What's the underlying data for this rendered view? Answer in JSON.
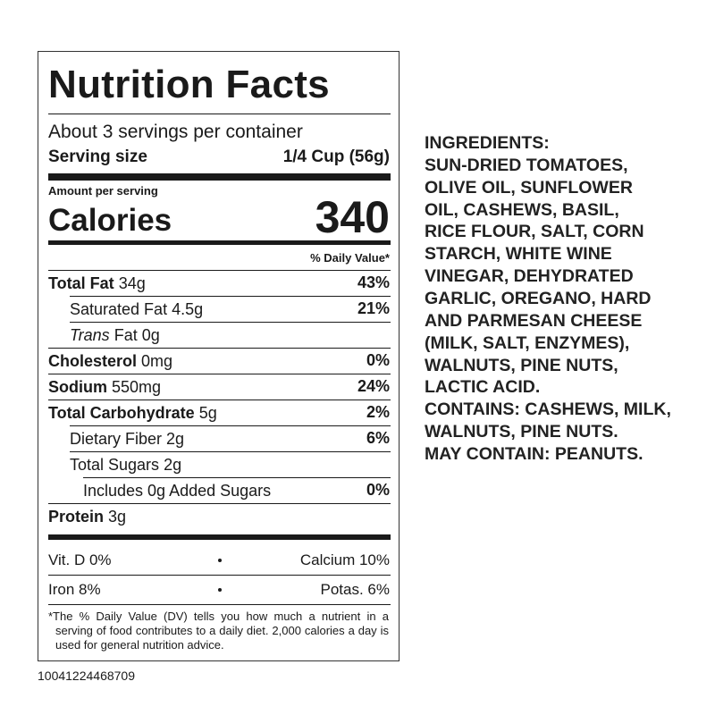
{
  "label": {
    "title": "Nutrition Facts",
    "servings": "About 3 servings per container",
    "serving_size_label": "Serving size",
    "serving_size_value": "1/4 Cup (56g)",
    "amount_per_serving": "Amount per serving",
    "calories_label": "Calories",
    "calories_value": "340",
    "daily_value_header": "% Daily Value*",
    "nutrients": [
      {
        "name": "Total Fat",
        "amount": "34g",
        "dv": "43%",
        "sub": [
          {
            "name": "Saturated Fat",
            "amount": "4.5g",
            "dv": "21%"
          },
          {
            "italic": "Trans",
            "name": "Fat",
            "amount": "0g"
          }
        ]
      },
      {
        "name": "Cholesterol",
        "amount": "0mg",
        "dv": "0%"
      },
      {
        "name": "Sodium",
        "amount": "550mg",
        "dv": "24%"
      },
      {
        "name": "Total Carbohydrate",
        "amount": "5g",
        "dv": "2%",
        "sub": [
          {
            "name": "Dietary Fiber",
            "amount": "2g",
            "dv": "6%"
          },
          {
            "name": "Total Sugars",
            "amount": "2g",
            "sub": [
              {
                "name": "Includes 0g Added Sugars",
                "dv": "0%"
              }
            ]
          }
        ]
      },
      {
        "name": "Protein",
        "amount": "3g"
      }
    ],
    "vitamins": [
      [
        "Vit. D 0%",
        "Calcium 10%"
      ],
      [
        "Iron 8%",
        "Potas. 6%"
      ]
    ],
    "footnote": "*The % Daily Value (DV) tells you how much a nutrient in a serving of food contributes to a daily diet. 2,000 calories a day is used for general nutrition advice."
  },
  "code": "10041224468709",
  "ingredients": [
    "INGREDIENTS:",
    "SUN-DRIED TOMATOES,",
    "OLIVE OIL, SUNFLOWER",
    "OIL, CASHEWS, BASIL,",
    "RICE FLOUR, SALT, CORN",
    "STARCH, WHITE WINE",
    "VINEGAR, DEHYDRATED",
    "GARLIC, OREGANO, HARD",
    "AND PARMESAN CHEESE",
    "(MILK, SALT, ENZYMES),",
    "WALNUTS, PINE NUTS,",
    "LACTIC ACID.",
    "CONTAINS: CASHEWS, MILK,",
    "WALNUTS, PINE NUTS.",
    "MAY CONTAIN: PEANUTS."
  ]
}
